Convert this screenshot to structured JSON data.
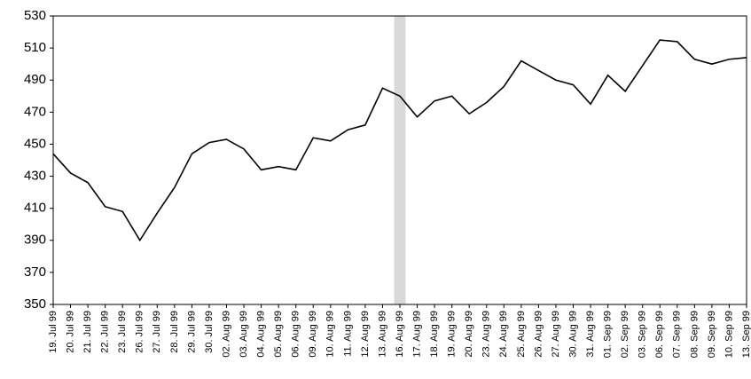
{
  "chart_data": {
    "type": "line",
    "categories": [
      "19. Jul 99",
      "20. Jul 99",
      "21. Jul 99",
      "22. Jul 99",
      "23. Jul 99",
      "26. Jul 99",
      "27. Jul 99",
      "28. Jul 99",
      "29. Jul 99",
      "30. Jul 99",
      "02. Aug 99",
      "03. Aug 99",
      "04. Aug 99",
      "05. Aug 99",
      "06. Aug 99",
      "09. Aug 99",
      "10. Aug 99",
      "11. Aug 99",
      "12. Aug 99",
      "13. Aug 99",
      "16. Aug 99",
      "17. Aug 99",
      "18. Aug 99",
      "19. Aug 99",
      "20. Aug 99",
      "23. Aug 99",
      "24. Aug 99",
      "25. Aug 99",
      "26. Aug 99",
      "27. Aug 99",
      "30. Aug 99",
      "31. Aug 99",
      "01. Sep 99",
      "02. Sep 99",
      "03. Sep 99",
      "06. Sep 99",
      "07. Sep 99",
      "08. Sep 99",
      "09. Sep 99",
      "10. Sep 99",
      "13. Sep 99"
    ],
    "values": [
      444,
      432,
      426,
      411,
      408,
      390,
      407,
      423,
      444,
      451,
      453,
      447,
      434,
      436,
      434,
      454,
      452,
      459,
      462,
      485,
      480,
      467,
      477,
      480,
      469,
      476,
      486,
      502,
      496,
      490,
      487,
      475,
      493,
      483,
      499,
      515,
      514,
      503,
      500,
      503,
      504
    ],
    "color": "#000000",
    "ylim": [
      350,
      530
    ],
    "yticks": [
      350,
      370,
      390,
      410,
      430,
      450,
      470,
      490,
      510,
      530
    ],
    "grid": false,
    "highlight": {
      "category_index": 20,
      "color": "#d9d9d9"
    }
  }
}
